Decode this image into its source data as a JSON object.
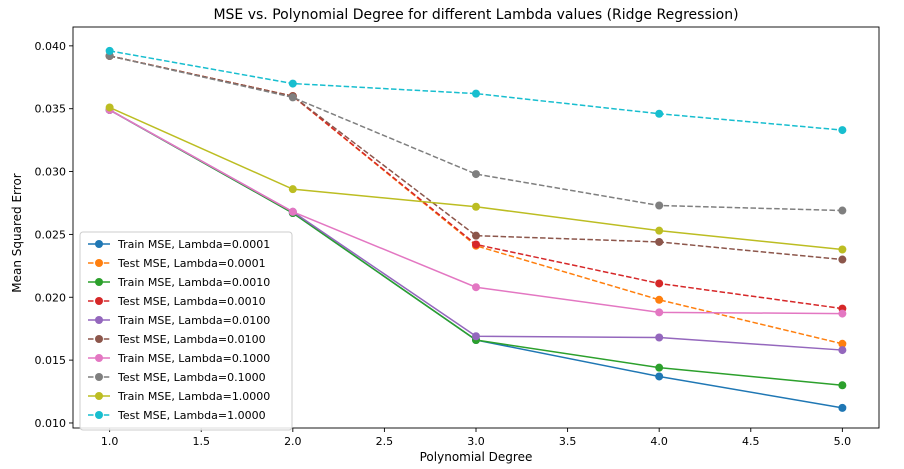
{
  "chart_data": {
    "type": "line",
    "title": "MSE vs. Polynomial Degree for different Lambda values (Ridge Regression)",
    "xlabel": "Polynomial Degree",
    "ylabel": "Mean Squared Error",
    "x": [
      1.0,
      2.0,
      3.0,
      4.0,
      5.0
    ],
    "xlim": [
      0.8,
      5.2
    ],
    "ylim": [
      0.0096,
      0.0415
    ],
    "xticks": [
      "1.0",
      "1.5",
      "2.0",
      "2.5",
      "3.0",
      "3.5",
      "4.0",
      "4.5",
      "5.0"
    ],
    "yticks": [
      "0.010",
      "0.015",
      "0.020",
      "0.025",
      "0.030",
      "0.035",
      "0.040"
    ],
    "grid": false,
    "legend_position": "lower-left",
    "series": [
      {
        "name": "Train MSE, Lambda=0.0001",
        "color": "#1f77b4",
        "style": "solid",
        "values": [
          0.0349,
          0.0267,
          0.0166,
          0.0137,
          0.0112
        ]
      },
      {
        "name": "Test MSE, Lambda=0.0001",
        "color": "#ff7f0e",
        "style": "dashed",
        "values": [
          0.0392,
          0.036,
          0.0241,
          0.0198,
          0.0163
        ]
      },
      {
        "name": "Train MSE, Lambda=0.0010",
        "color": "#2ca02c",
        "style": "solid",
        "values": [
          0.0349,
          0.0267,
          0.0166,
          0.0144,
          0.013
        ]
      },
      {
        "name": "Test MSE, Lambda=0.0010",
        "color": "#d62728",
        "style": "dashed",
        "values": [
          0.0392,
          0.036,
          0.0242,
          0.0211,
          0.0191
        ]
      },
      {
        "name": "Train MSE, Lambda=0.0100",
        "color": "#9467bd",
        "style": "solid",
        "values": [
          0.0349,
          0.0268,
          0.0169,
          0.0168,
          0.0158
        ]
      },
      {
        "name": "Test MSE, Lambda=0.0100",
        "color": "#8c564b",
        "style": "dashed",
        "values": [
          0.0392,
          0.036,
          0.0249,
          0.0244,
          0.023
        ]
      },
      {
        "name": "Train MSE, Lambda=0.1000",
        "color": "#e377c2",
        "style": "solid",
        "values": [
          0.0349,
          0.0268,
          0.0208,
          0.0188,
          0.0187
        ]
      },
      {
        "name": "Test MSE, Lambda=0.1000",
        "color": "#7f7f7f",
        "style": "dashed",
        "values": [
          0.0392,
          0.0359,
          0.0298,
          0.0273,
          0.0269
        ]
      },
      {
        "name": "Train MSE, Lambda=1.0000",
        "color": "#bcbd22",
        "style": "solid",
        "values": [
          0.0351,
          0.0286,
          0.0272,
          0.0253,
          0.0238
        ]
      },
      {
        "name": "Test MSE, Lambda=1.0000",
        "color": "#17becf",
        "style": "dashed",
        "values": [
          0.0396,
          0.037,
          0.0362,
          0.0346,
          0.0333
        ]
      }
    ]
  }
}
